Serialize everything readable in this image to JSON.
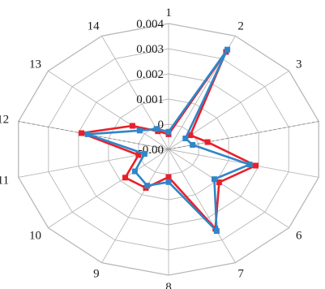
{
  "chart_data": {
    "type": "radar",
    "categories": [
      "1",
      "2",
      "3",
      "4",
      "5",
      "6",
      "7",
      "8",
      "9",
      "10",
      "11",
      "12",
      "13",
      "14"
    ],
    "ylim": [
      -0.001,
      0.004
    ],
    "ticks": [
      "-0.001",
      "0",
      "0.001",
      "0.002",
      "0.003",
      "0.004"
    ],
    "tick_labels": [
      "-0.00",
      "0",
      "0.001",
      "0.002",
      "0.003",
      "0.004"
    ],
    "grid": true,
    "series": [
      {
        "color": "#e8202a",
        "values": [
          -0.0004,
          0.0033,
          -0.0001,
          0.0003,
          0.0019,
          0.0011,
          0.0025,
          0.0001,
          0.0007,
          0.0008,
          0.0,
          0.0019,
          0.0005,
          -0.0002
        ]
      },
      {
        "color": "#2f86c8",
        "values": [
          -0.0003,
          0.0034,
          -0.0003,
          -0.0002,
          0.0017,
          0.0009,
          0.0026,
          0.0003,
          0.0006,
          0.0004,
          -0.0002,
          0.0017,
          0.0002,
          -0.0001
        ]
      }
    ]
  }
}
